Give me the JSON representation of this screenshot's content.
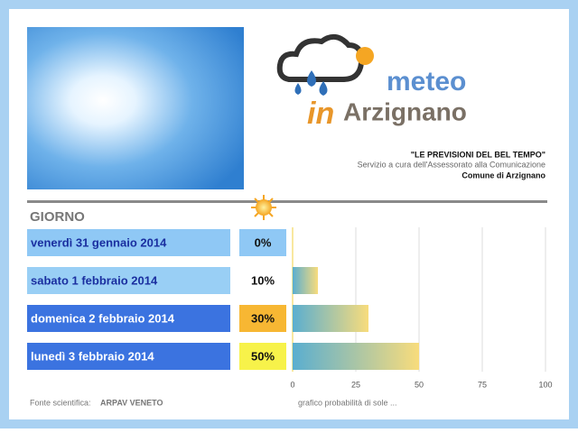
{
  "header": {
    "logo_word": "meteo",
    "logo_in": "in",
    "logo_town": "Arzignano",
    "tagline": "\"LE PREVISIONI DEL BEL TEMPO\"",
    "service": "Servizio a cura dell'Assessorato alla Comunicazione",
    "comune": "Comune di Arzignano"
  },
  "chart_data": {
    "type": "bar",
    "orientation": "horizontal",
    "category_header": "GIORNO",
    "categories": [
      "venerdì 31 gennaio 2014",
      "sabato 1 febbraio 2014",
      "domenica 2 febbraio 2014",
      "lunedì 3 febbraio 2014"
    ],
    "values": [
      0,
      10,
      30,
      50
    ],
    "value_labels": [
      "0%",
      "10%",
      "30%",
      "50%"
    ],
    "xlim": [
      0,
      100
    ],
    "xticks": [
      0,
      25,
      50,
      75,
      100
    ],
    "grid": true,
    "colors": [
      "#5aaed0",
      "#f8dc7c"
    ],
    "x_label": "grafico probabilità di sole ..."
  },
  "footer": {
    "source_label": "Fonte scientifica:",
    "source": "ARPAV VENETO"
  }
}
